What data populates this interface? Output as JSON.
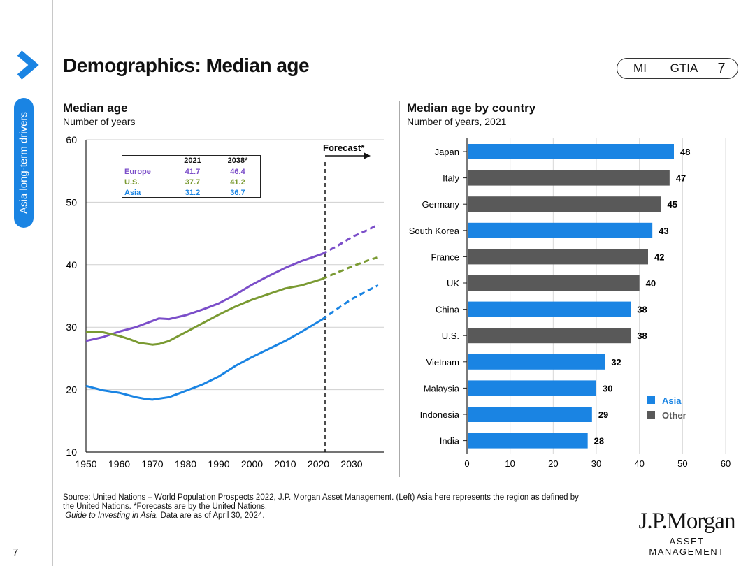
{
  "header": {
    "title": "Demographics: Median age",
    "pill": [
      "MI",
      "GTIA",
      "7"
    ],
    "side_tab": "Asia long-term drivers",
    "page_number": "7"
  },
  "colors": {
    "europe": "#7b4ec9",
    "us": "#7a9a32",
    "asia": "#1a84e3",
    "other": "#595959",
    "accent": "#1a84e3"
  },
  "left_chart": {
    "title": "Median age",
    "subtitle": "Number of years",
    "forecast_label": "Forecast*",
    "table": {
      "header": [
        "",
        "2021",
        "2038*"
      ],
      "rows": [
        {
          "name": "Europe",
          "v2021": "41.7",
          "v2038": "46.4"
        },
        {
          "name": "U.S.",
          "v2021": "37.7",
          "v2038": "41.2"
        },
        {
          "name": "Asia",
          "v2021": "31.2",
          "v2038": "36.7"
        }
      ]
    }
  },
  "right_chart": {
    "title": "Median age by country",
    "subtitle": "Number of years, 2021",
    "legend": [
      "Asia",
      "Other"
    ]
  },
  "chart_data": [
    {
      "type": "line",
      "title": "Median age",
      "ylabel": "Number of years",
      "xlim": [
        1950,
        2038
      ],
      "ylim": [
        10,
        60
      ],
      "xticks": [
        1950,
        1960,
        1970,
        1980,
        1990,
        2000,
        2010,
        2020,
        2030
      ],
      "yticks": [
        10,
        20,
        30,
        40,
        50,
        60
      ],
      "forecast_start": 2022,
      "series": [
        {
          "name": "Europe",
          "color": "#7b4ec9",
          "x": [
            1950,
            1955,
            1960,
            1965,
            1970,
            1972,
            1975,
            1980,
            1985,
            1990,
            1995,
            2000,
            2005,
            2010,
            2015,
            2021,
            2025,
            2030,
            2035,
            2038
          ],
          "y": [
            27.8,
            28.4,
            29.3,
            30.0,
            31.0,
            31.4,
            31.3,
            31.9,
            32.8,
            33.8,
            35.2,
            36.8,
            38.2,
            39.5,
            40.6,
            41.7,
            42.8,
            44.4,
            45.6,
            46.4
          ]
        },
        {
          "name": "U.S.",
          "color": "#7a9a32",
          "x": [
            1950,
            1955,
            1960,
            1963,
            1966,
            1970,
            1972,
            1975,
            1980,
            1985,
            1990,
            1995,
            2000,
            2005,
            2010,
            2015,
            2021,
            2025,
            2030,
            2035,
            2038
          ],
          "y": [
            29.2,
            29.2,
            28.6,
            28.1,
            27.5,
            27.2,
            27.3,
            27.8,
            29.2,
            30.6,
            32.0,
            33.3,
            34.4,
            35.3,
            36.2,
            36.7,
            37.7,
            38.6,
            39.7,
            40.7,
            41.2
          ]
        },
        {
          "name": "Asia",
          "color": "#1a84e3",
          "x": [
            1950,
            1955,
            1960,
            1965,
            1968,
            1970,
            1975,
            1980,
            1985,
            1990,
            1995,
            2000,
            2005,
            2010,
            2015,
            2021,
            2025,
            2030,
            2035,
            2038
          ],
          "y": [
            20.6,
            19.9,
            19.5,
            18.8,
            18.5,
            18.4,
            18.8,
            19.8,
            20.8,
            22.1,
            23.8,
            25.2,
            26.5,
            27.8,
            29.3,
            31.2,
            32.7,
            34.5,
            35.9,
            36.7
          ]
        }
      ]
    },
    {
      "type": "bar",
      "orientation": "horizontal",
      "title": "Median age by country",
      "subtitle": "Number of years, 2021",
      "xlim": [
        0,
        60
      ],
      "xticks": [
        0,
        10,
        20,
        30,
        40,
        50,
        60
      ],
      "categories": [
        "Japan",
        "Italy",
        "Germany",
        "South Korea",
        "France",
        "UK",
        "China",
        "U.S.",
        "Vietnam",
        "Malaysia",
        "Indonesia",
        "India"
      ],
      "values": [
        48,
        47,
        45,
        43,
        42,
        40,
        38,
        38,
        32,
        30,
        29,
        28
      ],
      "group": [
        "Asia",
        "Other",
        "Other",
        "Asia",
        "Other",
        "Other",
        "Asia",
        "Other",
        "Asia",
        "Asia",
        "Asia",
        "Asia"
      ],
      "legend": [
        "Asia",
        "Other"
      ]
    }
  ],
  "footer": {
    "source_line1": "Source: United Nations – World Population Prospects 2022, J.P. Morgan Asset Management. (Left) Asia here represents the region as defined by",
    "source_line2": "the United Nations. *Forecasts are by the United Nations.",
    "guide_italic": "Guide to Investing in Asia.",
    "guide_rest": " Data are as of April 30, 2024.",
    "logo_main": "J.P.Morgan",
    "logo_sub": "ASSET MANAGEMENT"
  }
}
